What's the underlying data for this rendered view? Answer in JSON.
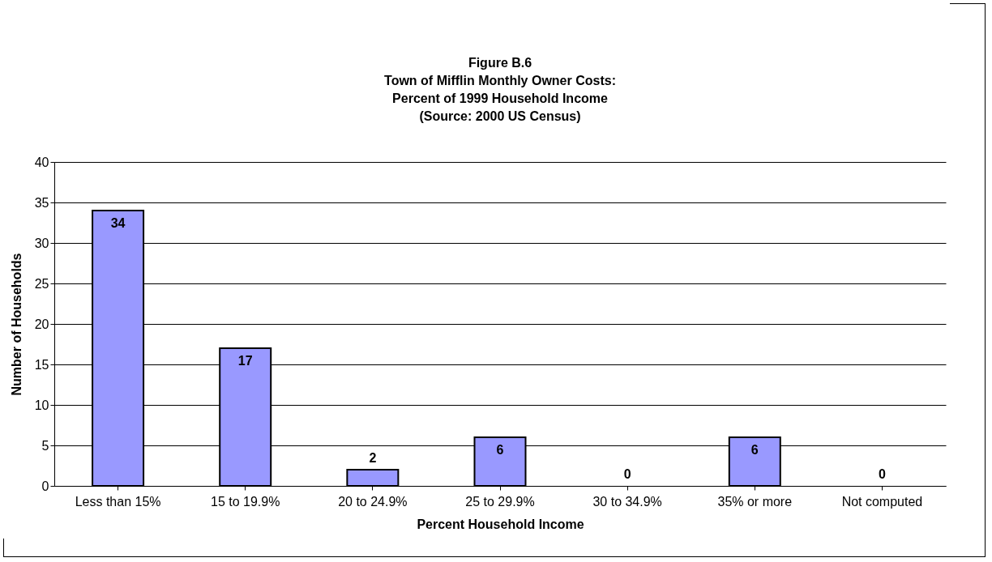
{
  "chart_data": {
    "type": "bar",
    "title": "Figure B.6\nTown of Mifflin Monthly Owner Costs:\nPercent of 1999 Household Income\n(Source:  2000 US Census)",
    "xlabel": "Percent Household Income",
    "ylabel": "Number of Households",
    "categories": [
      "Less than 15%",
      "15 to 19.9%",
      "20 to 24.9%",
      "25 to 29.9%",
      "30 to 34.9%",
      "35% or more",
      "Not computed"
    ],
    "values": [
      34,
      17,
      2,
      6,
      0,
      6,
      0
    ],
    "color": "#9999ff",
    "ylim": [
      0,
      40
    ],
    "yticks": [
      0,
      5,
      10,
      15,
      20,
      25,
      30,
      35,
      40
    ],
    "grid": "y",
    "data_labels": true
  }
}
